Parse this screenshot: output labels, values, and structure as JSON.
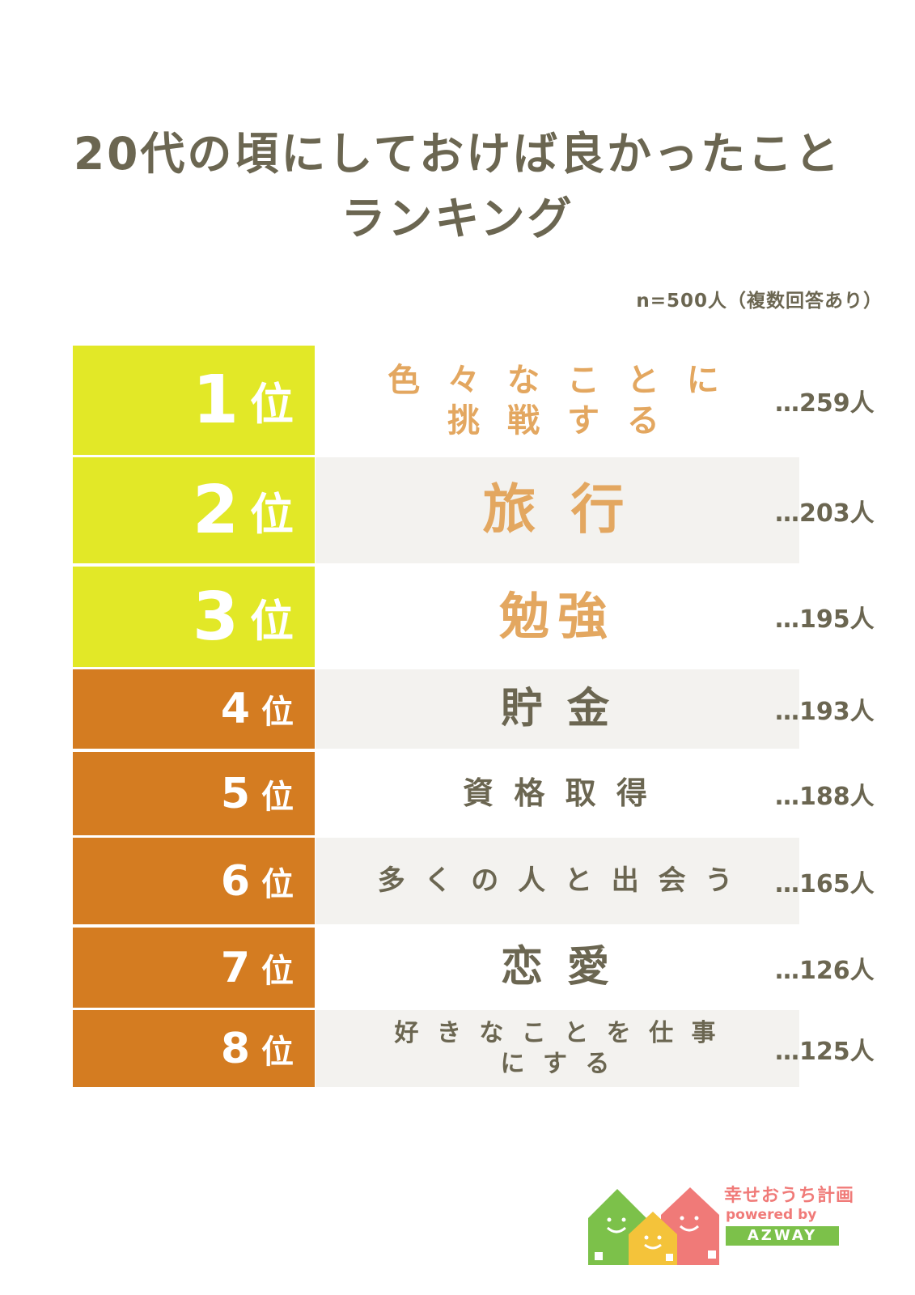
{
  "title": {
    "line1": "20代の頃にしておけば良かったこと",
    "line2": "ランキング"
  },
  "sample_note": "n=500人（複数回答あり）",
  "rank_suffix": "位",
  "ranks": [
    {
      "rank": "1",
      "lines": [
        "色 々 な こ と に",
        "挑 戦 す る"
      ],
      "count": "…259人",
      "tier": "top",
      "item_color": "#e3a760",
      "shaded": false
    },
    {
      "rank": "2",
      "lines": [
        "旅 行"
      ],
      "count": "…203人",
      "tier": "top",
      "item_color": "#e3a760",
      "shaded": true
    },
    {
      "rank": "3",
      "lines": [
        "勉強"
      ],
      "count": "…195人",
      "tier": "top",
      "item_color": "#e3a760",
      "shaded": false
    },
    {
      "rank": "4",
      "lines": [
        "貯 金"
      ],
      "count": "…193人",
      "tier": "low",
      "item_color": "#6b6651",
      "shaded": true
    },
    {
      "rank": "5",
      "lines": [
        "資 格 取 得"
      ],
      "count": "…188人",
      "tier": "low",
      "item_color": "#6b6651",
      "shaded": false
    },
    {
      "rank": "6",
      "lines": [
        "多 く の 人 と 出 会 う"
      ],
      "count": "…165人",
      "tier": "low",
      "item_color": "#6b6651",
      "shaded": true
    },
    {
      "rank": "7",
      "lines": [
        "恋 愛"
      ],
      "count": "…126人",
      "tier": "low",
      "item_color": "#6b6651",
      "shaded": false
    },
    {
      "rank": "8",
      "lines": [
        "好 き な こ と を 仕 事",
        "に す る"
      ],
      "count": "…125人",
      "tier": "low",
      "item_color": "#6b6651",
      "shaded": true
    }
  ],
  "logo": {
    "name": "幸せおうち計画",
    "powered": "powered by",
    "brand": "AZWAY"
  },
  "colors": {
    "rank_top": "#e2e827",
    "rank_low": "#d47c21",
    "text": "#6b6651",
    "highlight_text": "#e3a760",
    "shade": "#f3f2ef"
  }
}
